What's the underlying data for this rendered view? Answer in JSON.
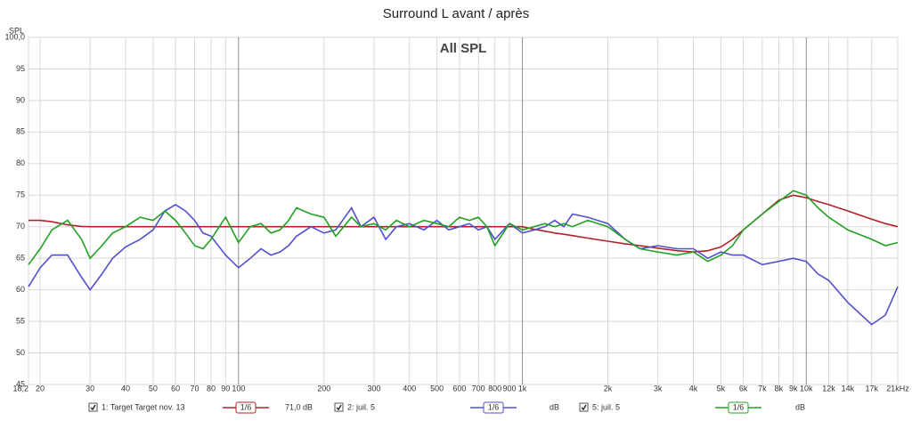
{
  "chart_data": {
    "type": "line",
    "title": "Surround L avant / après",
    "subtitle": "All SPL",
    "y_label": "SPL",
    "log_x": true,
    "grid": true,
    "x": [
      18.2,
      20,
      22,
      25,
      28,
      30,
      33,
      36,
      40,
      45,
      50,
      55,
      60,
      65,
      70,
      75,
      80,
      90,
      100,
      110,
      120,
      130,
      140,
      150,
      160,
      180,
      200,
      220,
      250,
      270,
      300,
      330,
      360,
      400,
      450,
      500,
      550,
      600,
      650,
      700,
      750,
      800,
      900,
      1000,
      1100,
      1200,
      1300,
      1400,
      1500,
      1700,
      2000,
      2300,
      2600,
      3000,
      3500,
      4000,
      4500,
      5000,
      5500,
      6000,
      7000,
      8000,
      9000,
      10000,
      11000,
      12000,
      14000,
      17000,
      19000,
      21000
    ],
    "series": [
      {
        "name": "1: Target Target nov. 13",
        "smoothing": "1/6",
        "level": "71,0 dB",
        "color": "#b3202a",
        "values": [
          71,
          71,
          70.8,
          70.3,
          70.05,
          70,
          70,
          70,
          70,
          70,
          70,
          70,
          70,
          70,
          70,
          70,
          70,
          70,
          70,
          70,
          70,
          70,
          70,
          70,
          70,
          70,
          70,
          70,
          70,
          70,
          70,
          70,
          70,
          70,
          70,
          70,
          70,
          70,
          70,
          70,
          70,
          70,
          70,
          70,
          69.6,
          69.3,
          69,
          68.8,
          68.6,
          68.2,
          67.7,
          67.3,
          67,
          66.6,
          66.2,
          66,
          66.2,
          66.8,
          68,
          69.5,
          72,
          74.2,
          75,
          74.6,
          74,
          73.5,
          72.5,
          71.2,
          70.5,
          70
        ]
      },
      {
        "name": "2: juil. 5",
        "smoothing": "1/6",
        "level": "dB",
        "color": "#5050d0",
        "values": [
          60.5,
          63.5,
          65.5,
          65.5,
          62,
          60,
          62.5,
          65,
          66.8,
          68,
          69.5,
          72.5,
          73.5,
          72.5,
          71,
          69,
          68.5,
          65.5,
          63.5,
          65,
          66.5,
          65.5,
          66,
          67,
          68.5,
          70,
          69,
          69.5,
          73,
          70,
          71.5,
          68,
          70,
          70.5,
          69.5,
          71,
          69.5,
          70,
          70.5,
          69.5,
          70,
          68,
          70.5,
          69,
          69.5,
          70,
          71,
          70,
          72,
          71.5,
          70.5,
          68,
          66.5,
          67,
          66.5,
          66.5,
          65,
          66,
          65.5,
          65.5,
          64,
          64.5,
          65,
          64.5,
          62.5,
          61.5,
          58,
          54.5,
          56,
          60.5
        ]
      },
      {
        "name": "5: juil. 5",
        "smoothing": "1/6",
        "level": "dB",
        "color": "#22a022",
        "values": [
          64,
          66.5,
          69.5,
          71,
          68,
          65,
          67,
          69,
          70,
          71.5,
          71,
          72.5,
          71,
          69,
          67,
          66.5,
          68,
          71.5,
          67.5,
          70,
          70.5,
          69,
          69.5,
          71,
          73,
          72,
          71.5,
          68.5,
          71.5,
          70,
          70.5,
          69.5,
          71,
          70,
          71,
          70.5,
          70,
          71.5,
          71,
          71.5,
          70,
          67,
          70.5,
          69.5,
          70,
          70.5,
          70,
          70.5,
          70,
          71,
          70,
          68,
          66.5,
          66,
          65.5,
          66,
          64.5,
          65.5,
          67,
          69.5,
          72,
          74,
          75.7,
          75,
          73,
          71.5,
          69.5,
          68,
          67,
          67.5
        ]
      }
    ],
    "xlim": [
      18.2,
      21000
    ],
    "ylim": [
      45,
      100
    ],
    "xticks": [
      {
        "value": 18.2,
        "label": "18,2"
      },
      20,
      30,
      40,
      50,
      60,
      70,
      80,
      90,
      100,
      200,
      300,
      400,
      500,
      600,
      700,
      800,
      {
        "value": 900,
        "label": "900"
      },
      {
        "value": 1000,
        "label": "1k"
      },
      {
        "value": 2000,
        "label": "2k"
      },
      {
        "value": 3000,
        "label": "3k"
      },
      {
        "value": 4000,
        "label": "4k"
      },
      {
        "value": 5000,
        "label": "5k"
      },
      {
        "value": 6000,
        "label": "6k"
      },
      {
        "value": 7000,
        "label": "7k"
      },
      {
        "value": 8000,
        "label": "8k"
      },
      {
        "value": 9000,
        "label": "9k"
      },
      {
        "value": 10000,
        "label": "10k"
      },
      {
        "value": 12000,
        "label": "12k"
      },
      {
        "value": 14000,
        "label": "14k"
      },
      {
        "value": 17000,
        "label": "17k"
      },
      {
        "value": 21000,
        "label": "21kHz"
      }
    ],
    "yticks": [
      45,
      50,
      55,
      60,
      65,
      70,
      75,
      80,
      85,
      90,
      95,
      {
        "value": 100,
        "label": "100,0"
      }
    ]
  }
}
